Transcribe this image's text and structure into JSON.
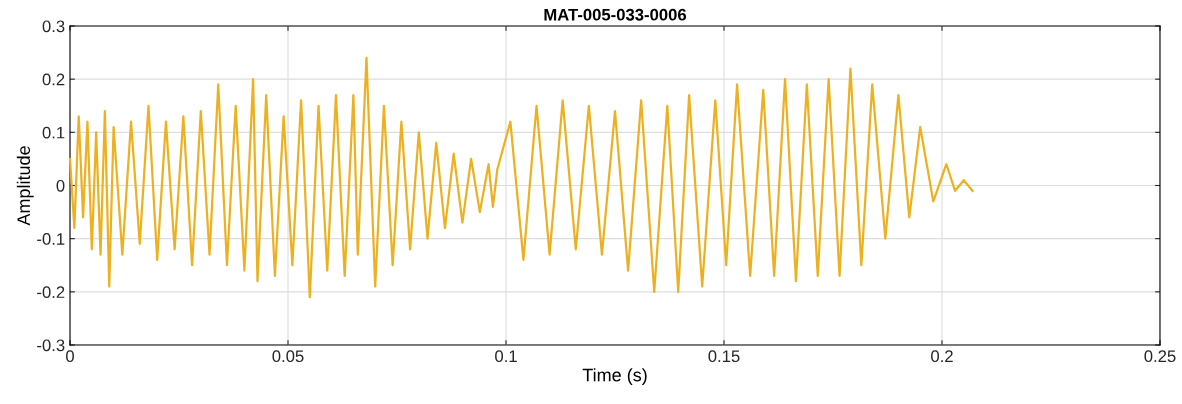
{
  "chart_data": {
    "type": "line",
    "title": "MAT-005-033-0006",
    "xlabel": "Time (s)",
    "ylabel": "Amplitude",
    "xlim": [
      0,
      0.25
    ],
    "xticks": [
      0,
      0.05,
      0.1,
      0.15,
      0.2,
      0.25
    ],
    "ylim": [
      -0.3,
      0.3
    ],
    "yticks": [
      -0.3,
      -0.2,
      -0.1,
      0,
      0.1,
      0.2,
      0.3
    ],
    "grid": true,
    "series": [
      {
        "color": "#edb120",
        "x": [
          0,
          0.001,
          0.002,
          0.003,
          0.004,
          0.005,
          0.006,
          0.007,
          0.008,
          0.009,
          0.01,
          0.012,
          0.014,
          0.016,
          0.018,
          0.02,
          0.022,
          0.024,
          0.026,
          0.028,
          0.03,
          0.032,
          0.034,
          0.036,
          0.038,
          0.04,
          0.042,
          0.043,
          0.045,
          0.047,
          0.049,
          0.051,
          0.053,
          0.055,
          0.057,
          0.059,
          0.061,
          0.063,
          0.065,
          0.066,
          0.068,
          0.07,
          0.072,
          0.074,
          0.076,
          0.078,
          0.08,
          0.082,
          0.084,
          0.086,
          0.088,
          0.09,
          0.092,
          0.094,
          0.096,
          0.097,
          0.098,
          0.101,
          0.104,
          0.107,
          0.11,
          0.113,
          0.116,
          0.119,
          0.122,
          0.125,
          0.128,
          0.131,
          0.134,
          0.137,
          0.1395,
          0.142,
          0.145,
          0.148,
          0.1505,
          0.153,
          0.156,
          0.159,
          0.1615,
          0.164,
          0.1665,
          0.169,
          0.1715,
          0.174,
          0.1765,
          0.179,
          0.1815,
          0.184,
          0.187,
          0.19,
          0.1925,
          0.195,
          0.198,
          0.201,
          0.203,
          0.205,
          0.207
        ],
        "values": [
          0.05,
          -0.08,
          0.13,
          -0.06,
          0.12,
          -0.12,
          0.1,
          -0.13,
          0.14,
          -0.19,
          0.11,
          -0.13,
          0.12,
          -0.11,
          0.15,
          -0.14,
          0.12,
          -0.12,
          0.13,
          -0.15,
          0.14,
          -0.13,
          0.19,
          -0.15,
          0.15,
          -0.16,
          0.2,
          -0.18,
          0.17,
          -0.17,
          0.13,
          -0.15,
          0.16,
          -0.21,
          0.15,
          -0.16,
          0.17,
          -0.17,
          0.17,
          -0.13,
          0.24,
          -0.19,
          0.15,
          -0.15,
          0.12,
          -0.12,
          0.1,
          -0.1,
          0.08,
          -0.08,
          0.06,
          -0.07,
          0.05,
          -0.05,
          0.04,
          -0.04,
          0.03,
          0.12,
          -0.14,
          0.15,
          -0.13,
          0.16,
          -0.12,
          0.15,
          -0.13,
          0.14,
          -0.16,
          0.16,
          -0.2,
          0.15,
          -0.2,
          0.17,
          -0.19,
          0.16,
          -0.15,
          0.19,
          -0.17,
          0.18,
          -0.17,
          0.2,
          -0.18,
          0.19,
          -0.17,
          0.2,
          -0.17,
          0.22,
          -0.15,
          0.19,
          -0.1,
          0.17,
          -0.06,
          0.11,
          -0.03,
          0.04,
          -0.01,
          0.01,
          -0.01
        ]
      }
    ]
  }
}
